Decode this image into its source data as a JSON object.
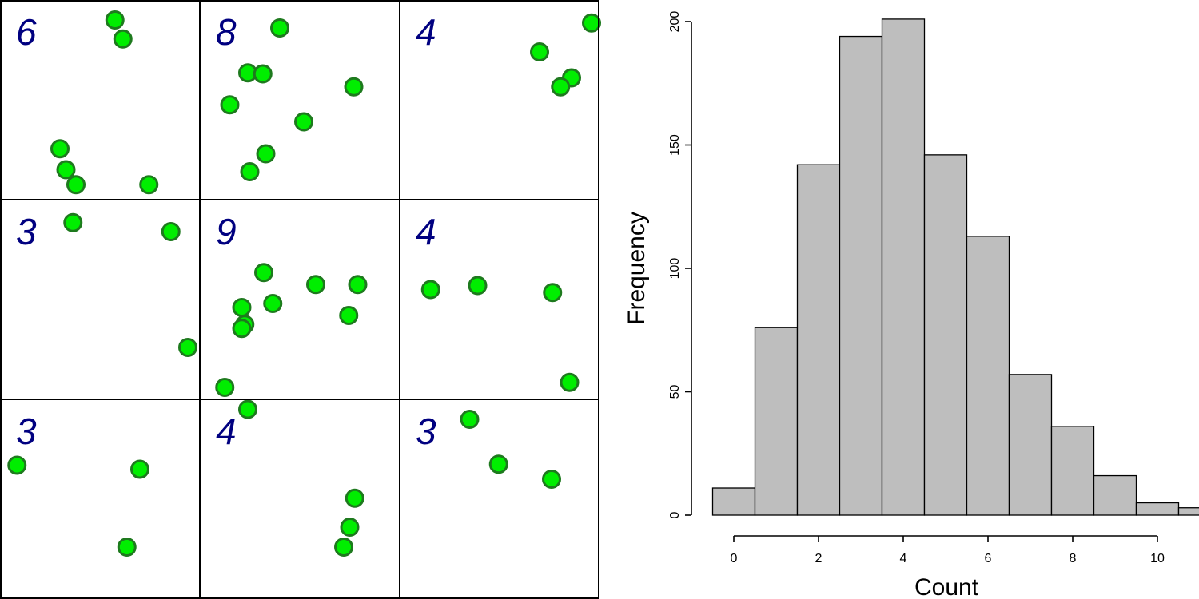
{
  "colors": {
    "point_fill": "#00ee00",
    "point_stroke": "#1e7a1e",
    "count_text": "#000080",
    "bar_fill": "#bebebe",
    "bar_stroke": "#000000"
  },
  "chart_data": [
    {
      "type": "scatter",
      "description_of_layout": "3x3 grid of quadrats; each shows point locations and the count of points",
      "xlim": [
        0,
        1
      ],
      "ylim": [
        0,
        1
      ],
      "quadrats": [
        {
          "row": 1,
          "col": 1,
          "count": "6",
          "points": [
            [
              0.575,
              0.9
            ],
            [
              0.615,
              0.805
            ],
            [
              0.3,
              0.255
            ],
            [
              0.33,
              0.15
            ],
            [
              0.38,
              0.075
            ],
            [
              0.745,
              0.075
            ]
          ]
        },
        {
          "row": 1,
          "col": 2,
          "count": "8",
          "points": [
            [
              0.4,
              0.86
            ],
            [
              0.24,
              0.635
            ],
            [
              0.315,
              0.63
            ],
            [
              0.77,
              0.565
            ],
            [
              0.15,
              0.475
            ],
            [
              0.52,
              0.39
            ],
            [
              0.33,
              0.23
            ],
            [
              0.25,
              0.14
            ]
          ]
        },
        {
          "row": 1,
          "col": 3,
          "count": "4",
          "points": [
            [
              0.96,
              0.885
            ],
            [
              0.7,
              0.74
            ],
            [
              0.86,
              0.61
            ],
            [
              0.805,
              0.565
            ]
          ]
        },
        {
          "row": 2,
          "col": 1,
          "count": "3",
          "points": [
            [
              0.365,
              0.885
            ],
            [
              0.855,
              0.84
            ],
            [
              0.94,
              0.26
            ]
          ]
        },
        {
          "row": 2,
          "col": 2,
          "count": "9",
          "points": [
            [
              0.32,
              0.635
            ],
            [
              0.58,
              0.575
            ],
            [
              0.79,
              0.575
            ],
            [
              0.365,
              0.48
            ],
            [
              0.21,
              0.46
            ],
            [
              0.745,
              0.42
            ],
            [
              0.225,
              0.375
            ],
            [
              0.21,
              0.355
            ],
            [
              0.125,
              0.06
            ]
          ]
        },
        {
          "row": 2,
          "col": 3,
          "count": "4",
          "points": [
            [
              0.39,
              0.57
            ],
            [
              0.155,
              0.55
            ],
            [
              0.765,
              0.535
            ],
            [
              0.85,
              0.085
            ]
          ]
        },
        {
          "row": 3,
          "col": 1,
          "count": "3",
          "points": [
            [
              0.085,
              0.67
            ],
            [
              0.7,
              0.65
            ],
            [
              0.635,
              0.26
            ]
          ]
        },
        {
          "row": 3,
          "col": 2,
          "count": "4",
          "points": [
            [
              0.24,
              0.95
            ],
            [
              0.775,
              0.505
            ],
            [
              0.75,
              0.36
            ],
            [
              0.72,
              0.26
            ]
          ]
        },
        {
          "row": 3,
          "col": 3,
          "count": "3",
          "points": [
            [
              0.35,
              0.9
            ],
            [
              0.495,
              0.675
            ],
            [
              0.76,
              0.6
            ]
          ]
        }
      ]
    },
    {
      "type": "bar",
      "subtype": "histogram",
      "title": "",
      "xlabel": "Count",
      "ylabel": "Frequency",
      "bin_width": 1,
      "bin_starts": [
        -0.5,
        0.5,
        1.5,
        2.5,
        3.5,
        4.5,
        5.5,
        6.5,
        7.5,
        8.5,
        9.5,
        10.5
      ],
      "values": [
        11,
        76,
        142,
        194,
        201,
        146,
        113,
        57,
        36,
        16,
        5,
        3
      ],
      "xlim": [
        -0.5,
        10.5
      ],
      "ylim": [
        0,
        200
      ],
      "x_ticks": [
        "0",
        "2",
        "4",
        "6",
        "8",
        "10"
      ],
      "y_ticks": [
        "0",
        "50",
        "100",
        "150",
        "200"
      ]
    }
  ]
}
